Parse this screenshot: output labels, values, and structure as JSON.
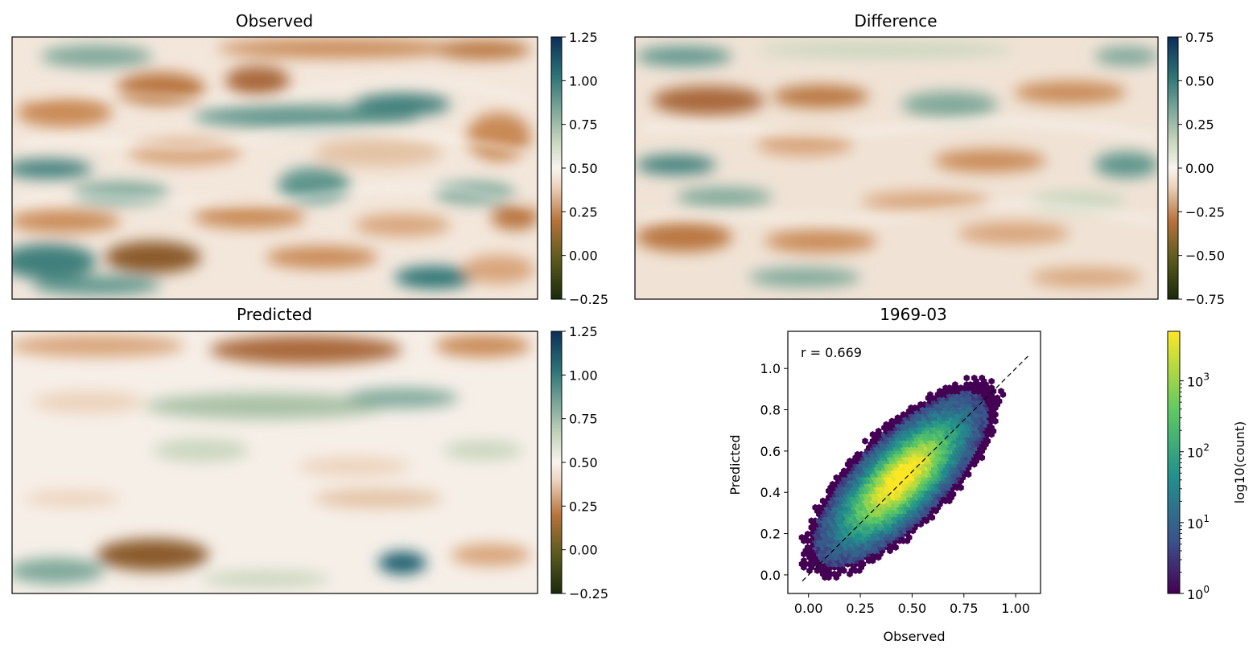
{
  "figure": {
    "colors": {
      "cmap_low": "#1f2a0f",
      "cmap_mid": "#f7f4ef",
      "cmap_high": "#0b3358",
      "brown": "#b06a2e",
      "teal": "#2a7a78"
    },
    "observed_panel": {
      "title": "Observed",
      "colorbar_ticks": [
        "1.25",
        "1.00",
        "0.75",
        "0.50",
        "0.25",
        "0.00",
        "−0.25"
      ],
      "vmin": -0.25,
      "vmax": 1.25
    },
    "difference_panel": {
      "title": "Difference",
      "colorbar_ticks": [
        "0.75",
        "0.50",
        "0.25",
        "0.00",
        "−0.25",
        "−0.50",
        "−0.75"
      ],
      "vmin": -0.75,
      "vmax": 0.75
    },
    "predicted_panel": {
      "title": "Predicted",
      "colorbar_ticks": [
        "1.25",
        "1.00",
        "0.75",
        "0.50",
        "0.25",
        "0.00",
        "−0.25"
      ],
      "vmin": -0.25,
      "vmax": 1.25
    }
  },
  "chart_data": {
    "type": "scatter",
    "subtype": "hexbin",
    "title": "1969-03",
    "xlabel": "Observed",
    "ylabel": "Predicted",
    "xlim": [
      -0.1,
      1.12
    ],
    "ylim": [
      -0.09,
      1.18
    ],
    "x_ticks": [
      0.0,
      0.25,
      0.5,
      0.75,
      1.0
    ],
    "x_tick_labels": [
      "0.00",
      "0.25",
      "0.50",
      "0.75",
      "1.00"
    ],
    "y_ticks": [
      0.0,
      0.2,
      0.4,
      0.6,
      0.8,
      1.0
    ],
    "y_tick_labels": [
      "0.0",
      "0.2",
      "0.4",
      "0.6",
      "0.8",
      "1.0"
    ],
    "annotation": "r = 0.669",
    "correlation": 0.669,
    "reference_line": {
      "style": "dashed",
      "from": [
        -0.03,
        -0.03
      ],
      "to": [
        1.07,
        1.07
      ]
    },
    "density_center": [
      0.45,
      0.47
    ],
    "colorbar": {
      "label": "log10(count)",
      "scale": "log",
      "ticks": [
        {
          "base": "10",
          "exp": "3"
        },
        {
          "base": "10",
          "exp": "2"
        },
        {
          "base": "10",
          "exp": "1"
        },
        {
          "base": "10",
          "exp": "0"
        }
      ],
      "max_count": 5000
    }
  }
}
